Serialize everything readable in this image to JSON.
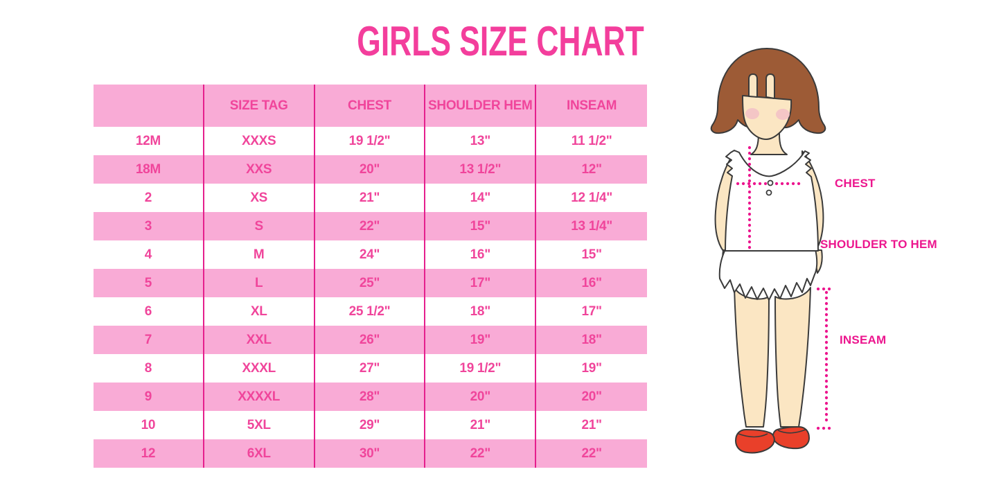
{
  "title": "GIRLS SIZE CHART",
  "colors": {
    "title": "#F33E9C",
    "row_pink": "#F9ABD6",
    "cell_text": "#F0459B",
    "divider": "#E51F8D",
    "annotation": "#EC168E",
    "hair": "#9D5B36",
    "skin": "#FBE6C3",
    "blush": "#F2BFC7",
    "shoe": "#E9402A",
    "outline": "#3A3A3A"
  },
  "chart_data": {
    "type": "table",
    "title": "GIRLS SIZE CHART",
    "columns": [
      "",
      "SIZE TAG",
      "CHEST",
      "SHOULDER HEM",
      "INSEAM"
    ],
    "rows": [
      [
        "12M",
        "XXXS",
        "19 1/2\"",
        "13\"",
        "11 1/2\""
      ],
      [
        "18M",
        "XXS",
        "20\"",
        "13 1/2\"",
        "12\""
      ],
      [
        "2",
        "XS",
        "21\"",
        "14\"",
        "12 1/4\""
      ],
      [
        "3",
        "S",
        "22\"",
        "15\"",
        "13 1/4\""
      ],
      [
        "4",
        "M",
        "24\"",
        "16\"",
        "15\""
      ],
      [
        "5",
        "L",
        "25\"",
        "17\"",
        "16\""
      ],
      [
        "6",
        "XL",
        "25 1/2\"",
        "18\"",
        "17\""
      ],
      [
        "7",
        "XXL",
        "26\"",
        "19\"",
        "18\""
      ],
      [
        "8",
        "XXXL",
        "27\"",
        "19 1/2\"",
        "19\""
      ],
      [
        "9",
        "XXXXL",
        "28\"",
        "20\"",
        "20\""
      ],
      [
        "10",
        "5XL",
        "29\"",
        "21\"",
        "21\""
      ],
      [
        "12",
        "6XL",
        "30\"",
        "22\"",
        "22\""
      ]
    ],
    "layout": {
      "alternating_row_colors": [
        "white",
        "light-pink"
      ],
      "column_dividers": "magenta vertical lines",
      "text_color": "pink"
    }
  },
  "figure": {
    "description": "cartoon girl with brown bob hair, white sleeveless ruffle top, red mary-jane shoes, pink dotted measurement guides",
    "labels": {
      "chest": "CHEST",
      "shoulder_to_hem": "SHOULDER TO HEM",
      "inseam": "INSEAM"
    }
  }
}
